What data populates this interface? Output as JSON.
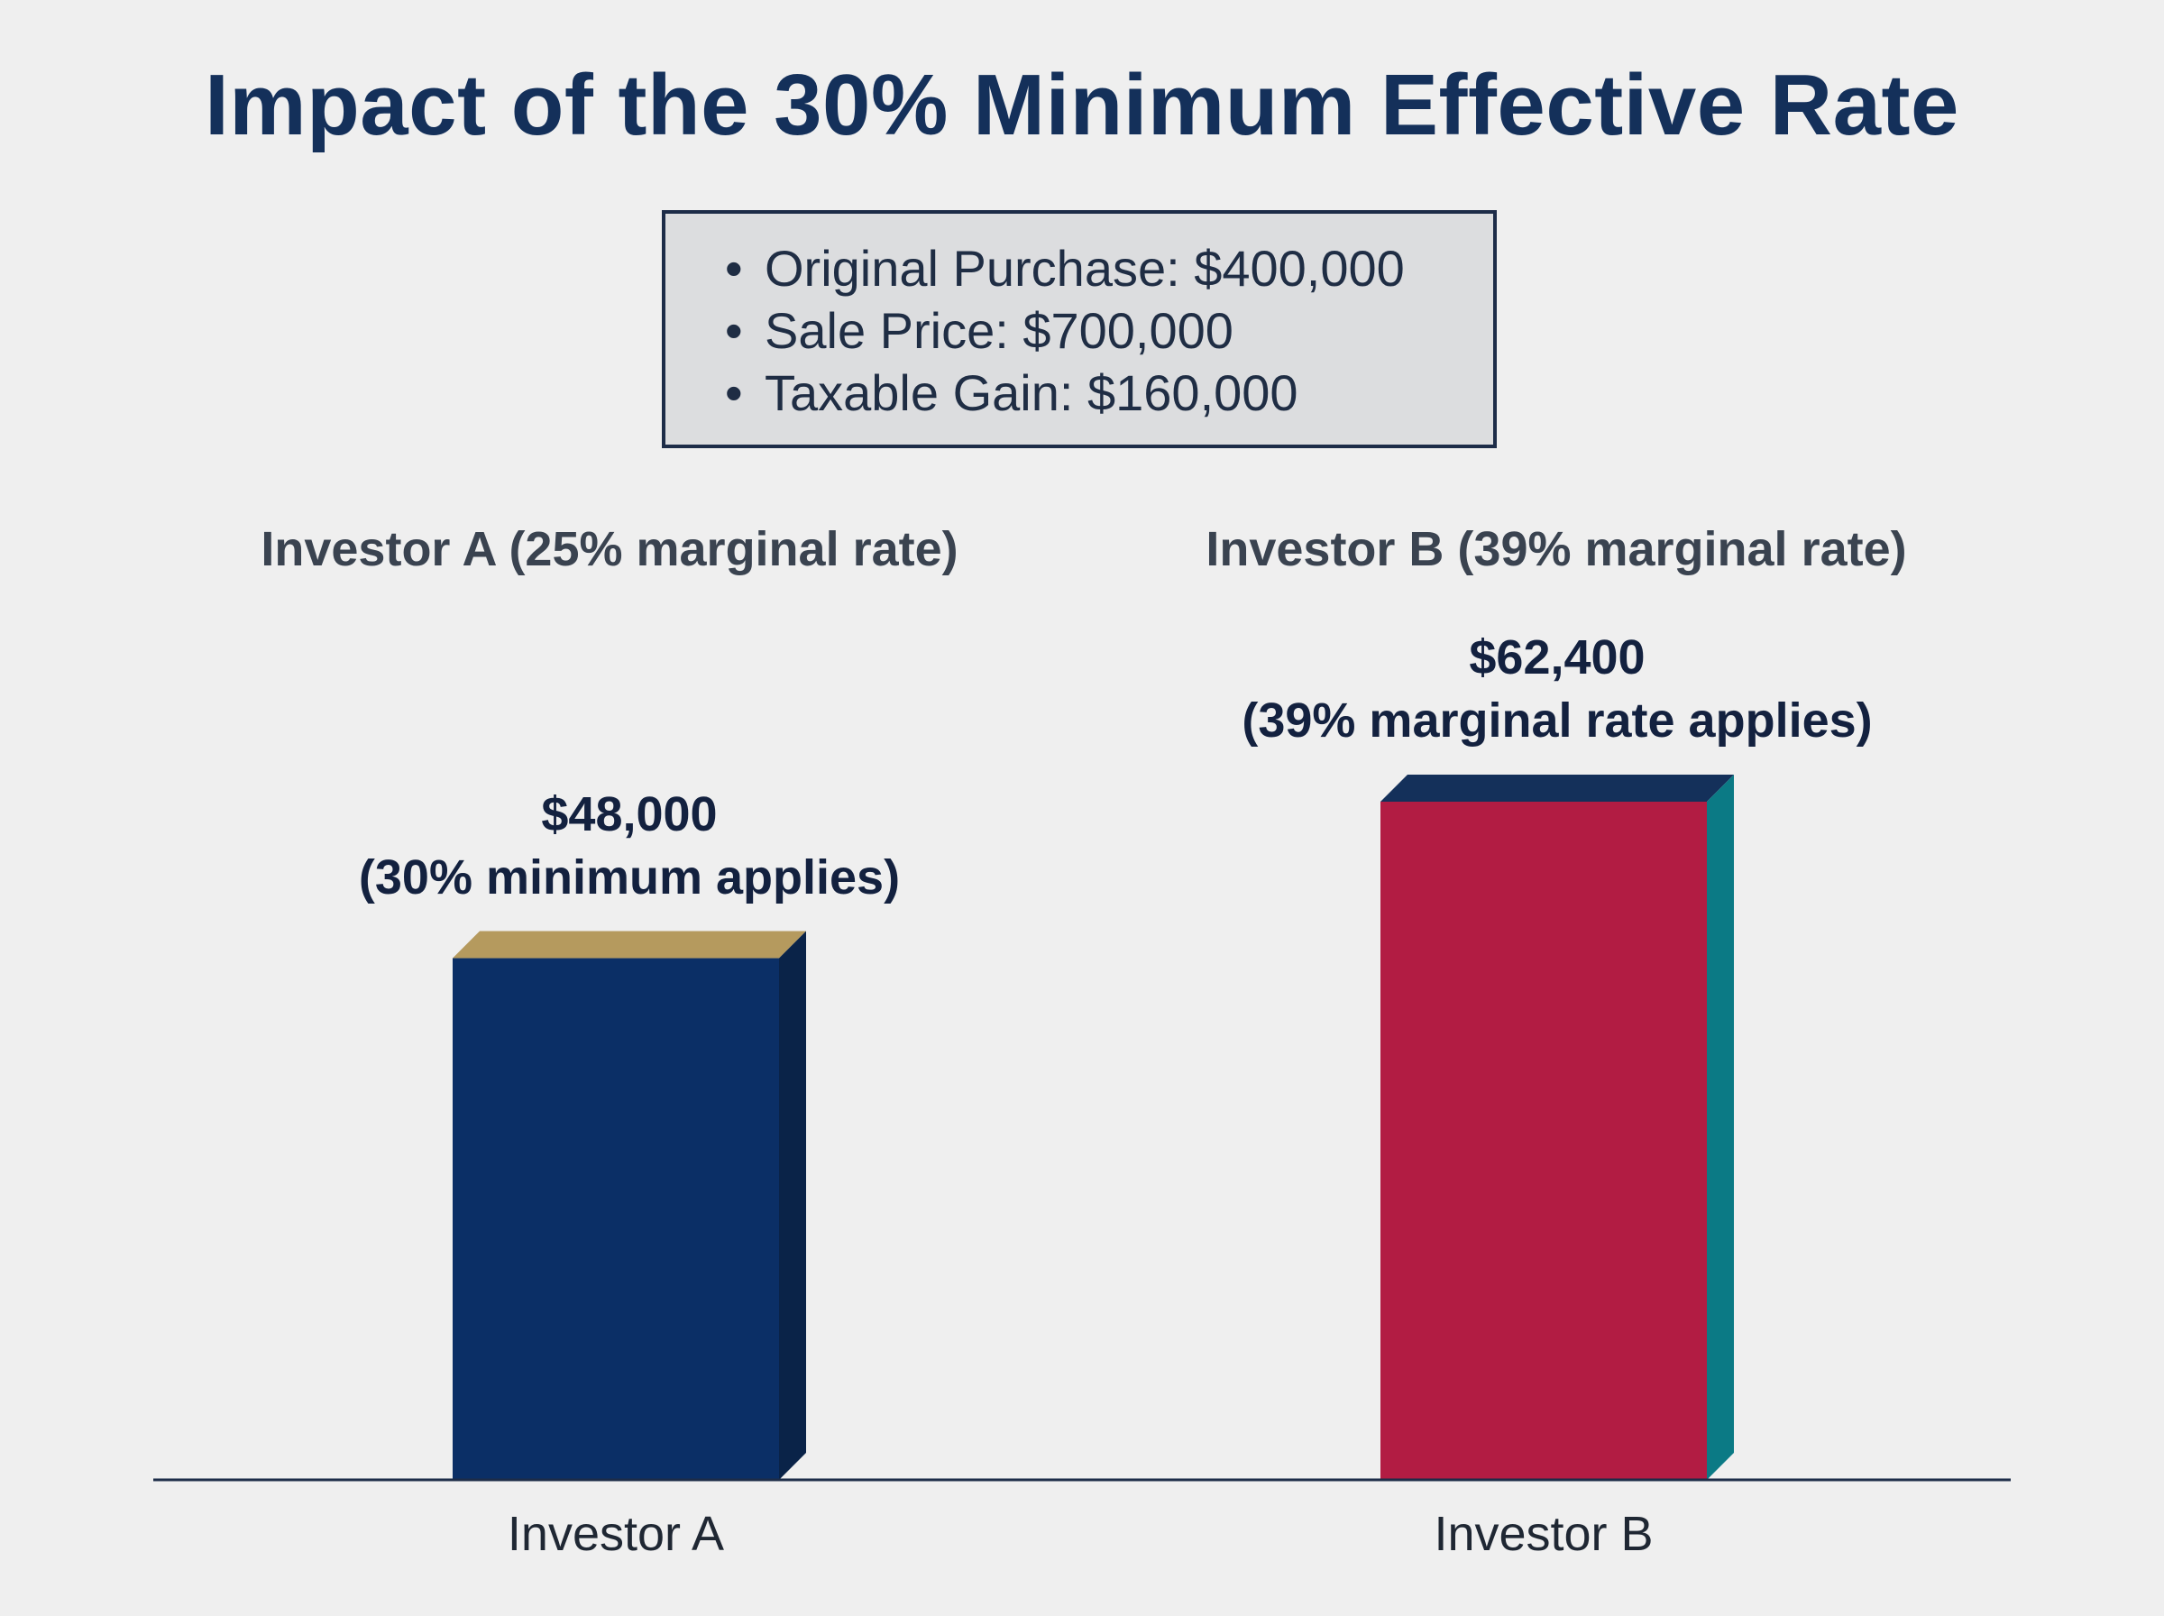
{
  "title": "Impact of the 30% Minimum Effective Rate",
  "info_box": {
    "items": [
      "Original Purchase: $400,000",
      "Sale Price: $700,000",
      "Taxable Gain: $160,000"
    ]
  },
  "chart_data": {
    "type": "bar",
    "title": "Impact of the 30% Minimum Effective Rate",
    "categories": [
      "Investor A",
      "Investor B"
    ],
    "values": [
      48000,
      62400
    ],
    "ylim": [
      0,
      62400
    ],
    "series_headers": [
      "Investor A (25% marginal rate)",
      "Investor B (39% marginal rate)"
    ],
    "data_labels": [
      {
        "value": "$48,000",
        "note": "(30% minimum applies)"
      },
      {
        "value": "$62,400",
        "note": "(39% marginal rate applies)"
      }
    ],
    "colors": {
      "bar_a_front": "#0b2f66",
      "bar_a_side": "#0a2348",
      "bar_a_top": "#b59a5e",
      "bar_b_front": "#b21c43",
      "bar_b_side": "#0b7a85",
      "bar_b_top": "#14305a",
      "axis": "#1d2c48"
    },
    "grid": false,
    "legend": "none"
  }
}
